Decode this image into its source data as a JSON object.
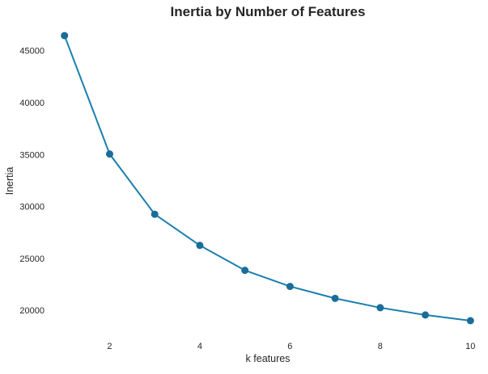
{
  "chart_data": {
    "type": "line",
    "title": "Inertia by Number of Features",
    "xlabel": "k features",
    "ylabel": "Inertia",
    "x": [
      1,
      2,
      3,
      4,
      5,
      6,
      7,
      8,
      9,
      10
    ],
    "series": [
      {
        "values": [
          46450,
          35050,
          29250,
          26250,
          23850,
          22300,
          21150,
          20250,
          19550,
          19000
        ]
      }
    ],
    "xticks": [
      2,
      4,
      6,
      8,
      10
    ],
    "yticks": [
      20000,
      25000,
      30000,
      35000,
      40000,
      45000
    ],
    "xlim": [
      0.7,
      10.3
    ],
    "ylim": [
      17600,
      47700
    ],
    "grid": false,
    "legend": "none",
    "line_color": "#1a7fae",
    "marker_color": "#1a6d9a"
  }
}
